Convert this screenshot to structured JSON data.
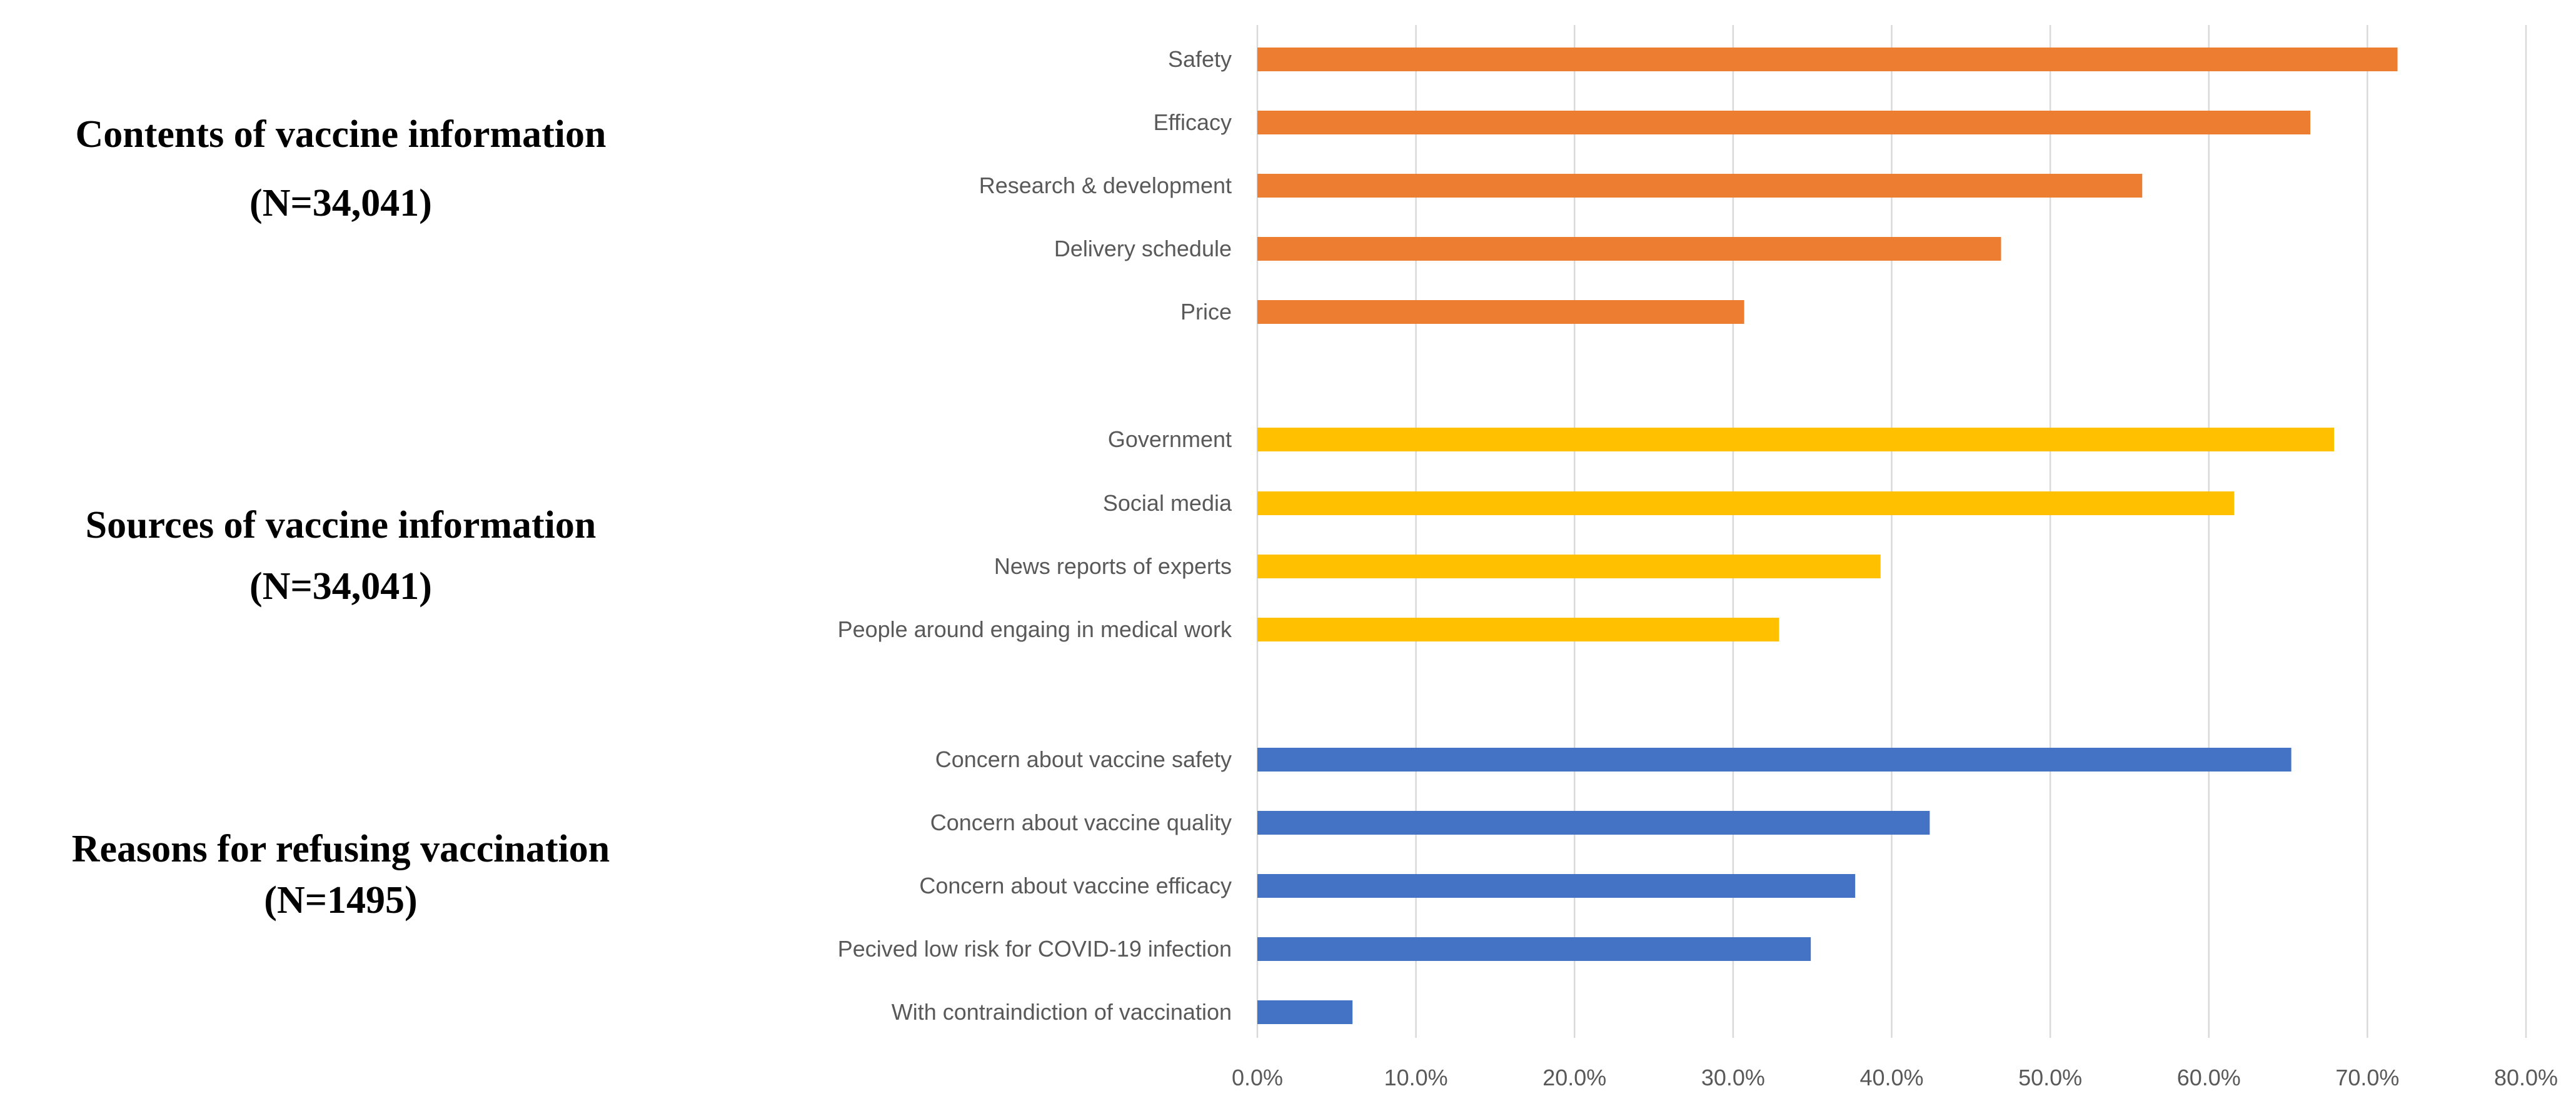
{
  "chart_data": {
    "type": "bar",
    "orientation": "horizontal",
    "grid": true,
    "xlim": [
      0,
      80
    ],
    "x_ticks": [
      "0.0%",
      "10.0%",
      "20.0%",
      "30.0%",
      "40.0%",
      "50.0%",
      "60.0%",
      "70.0%",
      "80.0%"
    ],
    "groups": [
      {
        "label": "Contents of vaccine information",
        "n_label": "(N=34,041)",
        "color": "#ed7d31",
        "categories": [
          "Safety",
          "Efficacy",
          "Research & development",
          "Delivery schedule",
          "Price"
        ],
        "values": [
          71.9,
          66.4,
          55.8,
          46.9,
          30.7
        ]
      },
      {
        "label": "Sources of vaccine information",
        "n_label": "(N=34,041)",
        "color": "#ffc000",
        "categories": [
          "Government",
          "Social media",
          "News reports of experts",
          "People around engaing in medical work"
        ],
        "values": [
          67.9,
          61.6,
          39.3,
          32.9
        ]
      },
      {
        "label": "Reasons for refusing vaccination",
        "n_label": "(N=1495)",
        "color": "#4472c4",
        "categories": [
          "Concern about vaccine safety",
          "Concern about vaccine quality",
          "Concern about vaccine efficacy",
          "Pecived low risk for COVID-19 infection",
          "With contraindiction of vaccination"
        ],
        "values": [
          65.2,
          42.4,
          37.7,
          34.9,
          6.0
        ]
      }
    ]
  }
}
